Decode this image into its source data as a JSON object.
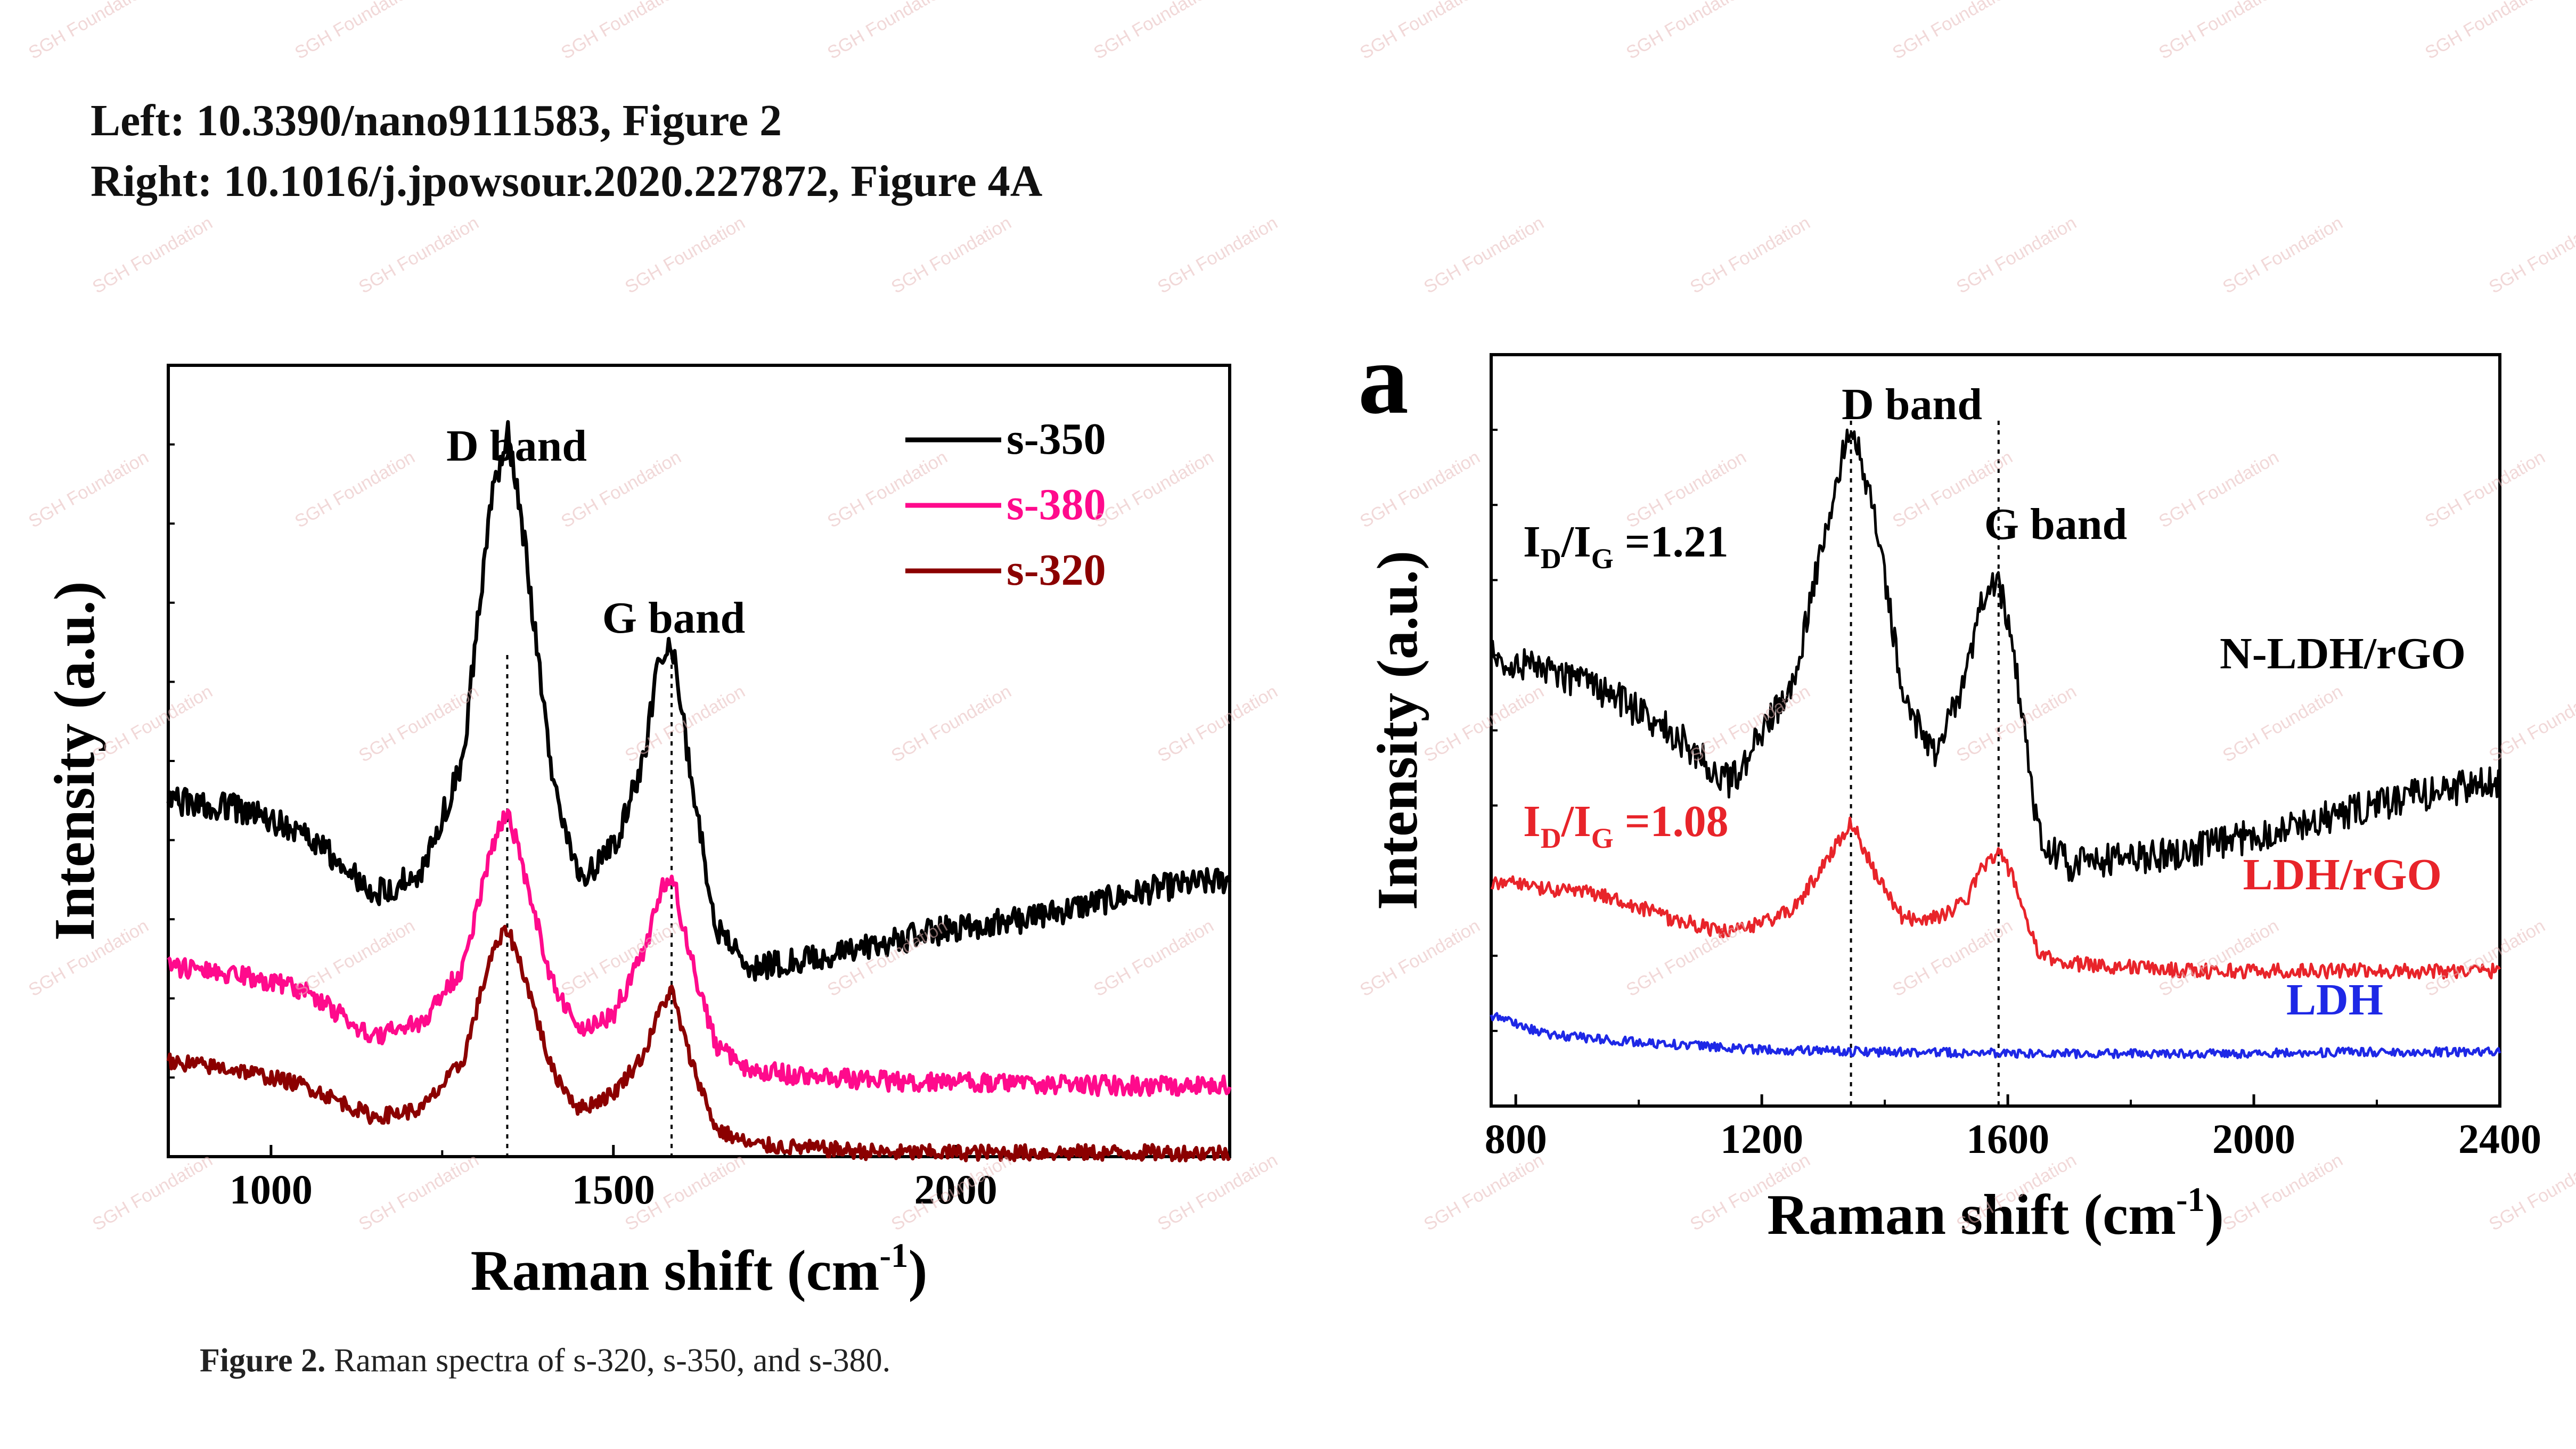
{
  "header": {
    "line1": "Left: 10.3390/nano9111583, Figure 2",
    "line2": "Right: 10.1016/j.jpowsour.2020.227872, Figure 4A"
  },
  "caption": {
    "label": "Figure 2.",
    "text": " Raman spectra of s-320, s-350, and s-380."
  },
  "watermark": "SGH Foundation",
  "colors": {
    "black": "#000000",
    "magenta": "#ff0a8c",
    "darkred": "#8b0000",
    "red": "#e8242a",
    "blue": "#1e28e6"
  },
  "chart_data": [
    {
      "type": "line",
      "panel_label": "",
      "xlabel": "Raman shift (cm⁻¹)",
      "ylabel": "Intensity (a.u.)",
      "xlim": [
        850,
        2400
      ],
      "ylim": [
        0,
        10
      ],
      "xticks": [
        1000,
        1500,
        2000
      ],
      "yticks_labeled": false,
      "legend_position": "top-right",
      "annotations": [
        {
          "text": "D band",
          "x": 1340,
          "y": 9.7
        },
        {
          "text": "G band",
          "x": 1585,
          "y": 7.2
        }
      ],
      "vlines": [
        1345,
        1585
      ],
      "series": [
        {
          "name": "s-350",
          "color": "#000000",
          "x": [
            850,
            950,
            1050,
            1150,
            1220,
            1280,
            1320,
            1345,
            1370,
            1410,
            1450,
            1500,
            1545,
            1565,
            1585,
            1610,
            1650,
            1700,
            1800,
            1900,
            2000,
            2100,
            2200,
            2300,
            2400
          ],
          "y": [
            4.5,
            4.4,
            4.1,
            3.3,
            3.6,
            5.0,
            8.2,
            9.2,
            7.8,
            4.8,
            3.5,
            3.9,
            5.0,
            6.3,
            6.5,
            5.0,
            2.9,
            2.4,
            2.5,
            2.7,
            2.9,
            3.0,
            3.2,
            3.4,
            3.5
          ]
        },
        {
          "name": "s-380",
          "color": "#ff0a8c",
          "x": [
            850,
            950,
            1050,
            1150,
            1220,
            1280,
            1320,
            1345,
            1370,
            1410,
            1450,
            1500,
            1545,
            1570,
            1585,
            1610,
            1650,
            1700,
            1800,
            1900,
            2000,
            2100,
            2200,
            2300,
            2400
          ],
          "y": [
            2.4,
            2.3,
            2.1,
            1.5,
            1.7,
            2.4,
            3.8,
            4.4,
            3.6,
            2.2,
            1.6,
            1.8,
            2.6,
            3.4,
            3.6,
            2.6,
            1.4,
            1.1,
            1.0,
            0.95,
            0.95,
            0.9,
            0.9,
            0.9,
            0.9
          ]
        },
        {
          "name": "s-320",
          "color": "#8b0000",
          "x": [
            850,
            950,
            1050,
            1150,
            1220,
            1280,
            1320,
            1345,
            1370,
            1410,
            1450,
            1500,
            1545,
            1570,
            1585,
            1610,
            1650,
            1700,
            1800,
            1900,
            2000,
            2100,
            2200,
            2300,
            2400
          ],
          "y": [
            1.2,
            1.1,
            0.9,
            0.5,
            0.6,
            1.2,
            2.5,
            2.9,
            2.3,
            1.1,
            0.6,
            0.8,
            1.3,
            1.9,
            2.1,
            1.3,
            0.35,
            0.15,
            0.1,
            0.05,
            0.05,
            0.05,
            0.05,
            0.05,
            0.05
          ]
        }
      ]
    },
    {
      "type": "line",
      "panel_label": "a",
      "xlabel": "Raman shift (cm⁻¹)",
      "ylabel": "Intensity (a.u.)",
      "xlim": [
        760,
        2400
      ],
      "ylim": [
        0,
        10
      ],
      "xticks": [
        800,
        1200,
        1600,
        2000,
        2400
      ],
      "yticks_labeled": false,
      "annotations": [
        {
          "text": "D band",
          "x": 1350,
          "y": 9.5
        },
        {
          "text": "G band",
          "x": 1600,
          "y": 7.9
        },
        {
          "text": "I",
          "sub": "D",
          "text2": "/I",
          "sub2": "G",
          "text3": " =1.21",
          "x": 800,
          "y": 7.5,
          "color": "#000000"
        },
        {
          "text": "I",
          "sub": "D",
          "text2": "/I",
          "sub2": "G",
          "text3": " =1.08",
          "x": 800,
          "y": 3.8,
          "color": "#e8242a"
        }
      ],
      "vlines": [
        1345,
        1585
      ],
      "series": [
        {
          "name": "N-LDH/rGO",
          "color": "#000000",
          "x": [
            760,
            850,
            950,
            1050,
            1150,
            1250,
            1300,
            1345,
            1390,
            1430,
            1480,
            1530,
            1560,
            1585,
            1610,
            1650,
            1700,
            1800,
            1900,
            2000,
            2100,
            2200,
            2300,
            2400
          ],
          "y": [
            6.0,
            5.8,
            5.5,
            5.0,
            4.3,
            5.6,
            7.5,
            9.2,
            7.6,
            5.4,
            4.7,
            5.6,
            6.8,
            7.0,
            6.0,
            3.6,
            3.2,
            3.3,
            3.4,
            3.6,
            3.8,
            4.0,
            4.2,
            4.3
          ]
        },
        {
          "name": "LDH/rGO",
          "color": "#e8242a",
          "x": [
            760,
            850,
            950,
            1050,
            1150,
            1250,
            1300,
            1345,
            1390,
            1430,
            1480,
            1530,
            1560,
            1585,
            1610,
            1650,
            1700,
            1800,
            1900,
            2000,
            2100,
            2200,
            2300,
            2400
          ],
          "y": [
            3.0,
            2.9,
            2.8,
            2.5,
            2.3,
            2.6,
            3.2,
            3.8,
            3.0,
            2.5,
            2.5,
            2.7,
            3.2,
            3.4,
            3.0,
            2.0,
            1.9,
            1.85,
            1.8,
            1.8,
            1.8,
            1.8,
            1.8,
            1.8
          ]
        },
        {
          "name": "LDH",
          "color": "#1e28e6",
          "x": [
            760,
            850,
            1000,
            1200,
            1400,
            1600,
            1800,
            2000,
            2200,
            2400
          ],
          "y": [
            1.2,
            0.95,
            0.85,
            0.75,
            0.72,
            0.7,
            0.7,
            0.7,
            0.72,
            0.72
          ]
        }
      ],
      "series_labels_position": "right, next to each curve"
    }
  ]
}
